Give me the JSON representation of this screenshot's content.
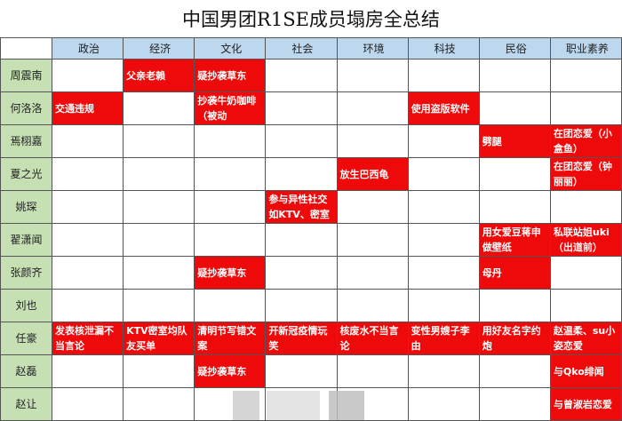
{
  "title": "中国男团R1SE成员塌房全总结",
  "colors": {
    "header": "#bdd7ee",
    "name_column": "#c6e0b4",
    "incident": "#ee0a0a"
  },
  "columns": [
    "政治",
    "经济",
    "文化",
    "社会",
    "环境",
    "科技",
    "民俗",
    "职业素养"
  ],
  "rows": [
    {
      "name": "周震南",
      "cells": [
        "",
        "父亲老赖",
        "疑抄袭草东",
        "",
        "",
        "",
        "",
        ""
      ]
    },
    {
      "name": "何洛洛",
      "cells": [
        "交通违规",
        "",
        "抄袭牛奶咖啡（被动",
        "",
        "",
        "使用盗版软件",
        "",
        ""
      ]
    },
    {
      "name": "焉栩嘉",
      "cells": [
        "",
        "",
        "",
        "",
        "",
        "",
        "劈腿",
        "在团恋爱（小盒鱼）"
      ]
    },
    {
      "name": "夏之光",
      "cells": [
        "",
        "",
        "",
        "",
        "放生巴西龟",
        "",
        "",
        "在团恋爱（钟丽丽）"
      ]
    },
    {
      "name": "姚琛",
      "cells": [
        "",
        "",
        "",
        "参与异性社交如KTV、密室",
        "",
        "",
        "",
        ""
      ]
    },
    {
      "name": "翟潇闻",
      "cells": [
        "",
        "",
        "",
        "",
        "",
        "",
        "用女爱豆蒋申做壁纸",
        "私联站姐uki（出道前）"
      ]
    },
    {
      "name": "张颜齐",
      "cells": [
        "",
        "",
        "疑抄袭草东",
        "",
        "",
        "",
        "母丹",
        ""
      ]
    },
    {
      "name": "刘也",
      "cells": [
        "",
        "",
        "",
        "",
        "",
        "",
        "",
        ""
      ]
    },
    {
      "name": "任豪",
      "cells": [
        "发表核泄漏不当言论",
        "KTV密室均队友买单",
        "清明节写错文案",
        "开新冠疫情玩笑",
        "核废水不当言论",
        "变性男嫂子李由",
        "用好友名字约炮",
        "赵温柔、su小姿恋爱"
      ]
    },
    {
      "name": "赵磊",
      "cells": [
        "",
        "",
        "疑抄袭草东",
        "",
        "",
        "",
        "",
        "与Qko绯闻"
      ]
    },
    {
      "name": "赵让",
      "cells": [
        "",
        "",
        "",
        "",
        "",
        "",
        "",
        "与曾淑岩恋爱"
      ]
    }
  ]
}
